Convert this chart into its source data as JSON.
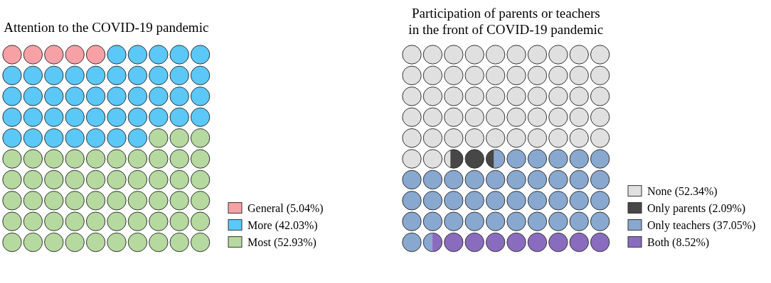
{
  "chart_data": [
    {
      "type": "other",
      "title": "Attention to the COVID-19 pandemic",
      "categories": [
        "General",
        "More",
        "Most"
      ],
      "values": [
        5.04,
        42.03,
        52.93
      ],
      "value_labels": [
        "(5.04%)",
        "(42.03%)",
        "(52.93%)"
      ],
      "colors": [
        "#f7a1a6",
        "#5bc8f7",
        "#b6d99f"
      ]
    },
    {
      "type": "other",
      "title": "Participation of parents or teachers\nin the front of COVID-19 pandemic",
      "categories": [
        "None",
        "Only parents",
        "Only teachers",
        "Both"
      ],
      "values": [
        52.34,
        2.09,
        37.05,
        8.52
      ],
      "value_labels": [
        "(52.34%)",
        "(2.09%)",
        "(37.05%)",
        "(8.52%)"
      ],
      "colors": [
        "#e0e0e0",
        "#474747",
        "#88a8cf",
        "#8a6cbf"
      ]
    }
  ]
}
